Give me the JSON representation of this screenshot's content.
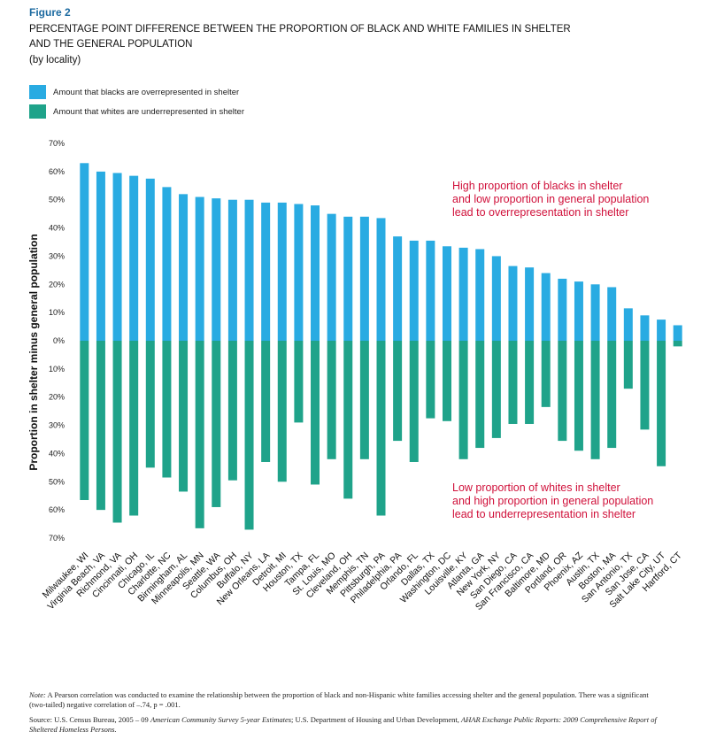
{
  "chart_data": {
    "type": "bar",
    "figure_label": "Figure 2",
    "title": [
      "PERCENTAGE POINT DIFFERENCE BETWEEN THE PROPORTION OF BLACK AND WHITE FAMILIES IN SHELTER",
      "AND THE GENERAL POPULATION"
    ],
    "subtitle": "(by locality)",
    "y_label": "Proportion in shelter minus general population",
    "categories": [
      "Milwaukee, WI",
      "Virginia Beach, VA",
      "Richmond, VA",
      "Cincinnati, OH",
      "Chicago, IL",
      "Charlotte, NC",
      "Birmingham, AL",
      "Minneapolis, MN",
      "Seattle, WA",
      "Columbus, OH",
      "Buffalo, NY",
      "New Orleans, LA",
      "Detroit, MI",
      "Houston, TX",
      "Tampa, FL",
      "St. Louis, MO",
      "Cleveland, OH",
      "Memphis, TN",
      "Pittsburgh, PA",
      "Philadelphia, PA",
      "Orlando, FL",
      "Dallas, TX",
      "Washington, DC",
      "Louisville, KY",
      "Atlanta, GA",
      "New York, NY",
      "San Diego, CA",
      "San Francisco, CA",
      "Baltimore, MD",
      "Portland, OR",
      "Phoenix, AZ",
      "Austin, TX",
      "Boston, MA",
      "San Antonio, TX",
      "San Jose, CA",
      "Salt Lake City, UT",
      "Hartford, CT"
    ],
    "series": [
      {
        "name": "Amount that blacks are overrepresented in shelter",
        "color": "#29abe2",
        "values": [
          63,
          60,
          59.5,
          58.5,
          57.5,
          54.5,
          52,
          51,
          50.5,
          50,
          50,
          49,
          49,
          48.5,
          48,
          45,
          44,
          44,
          43.5,
          37,
          35.5,
          35.5,
          33.5,
          33,
          32.5,
          30,
          26.5,
          26,
          24,
          22,
          21,
          20,
          19,
          11.5,
          9,
          7.5,
          5.5
        ]
      },
      {
        "name": "Amount that whites are underrepresented in shelter",
        "color": "#1fa38a",
        "values": [
          -56.5,
          -60,
          -64.5,
          -62,
          -45,
          -48.5,
          -53.5,
          -66.5,
          -59,
          -49.5,
          -67,
          -43,
          -50,
          -29,
          -51,
          -42,
          -56,
          -42,
          -62,
          -35.5,
          -43,
          -27.5,
          -28.5,
          -42,
          -38,
          -34.5,
          -29.5,
          -29.5,
          -23.5,
          -35.5,
          -39,
          -42,
          -38,
          -17,
          -31.5,
          -44.5,
          -2
        ]
      }
    ],
    "ylim": [
      -70,
      70
    ],
    "yticks": [
      {
        "value": 70,
        "label": "70%"
      },
      {
        "value": 60,
        "label": "60%"
      },
      {
        "value": 50,
        "label": "50%"
      },
      {
        "value": 40,
        "label": "40%"
      },
      {
        "value": 30,
        "label": "30%"
      },
      {
        "value": 20,
        "label": "20%"
      },
      {
        "value": 10,
        "label": "10%"
      },
      {
        "value": 0,
        "label": "0%"
      },
      {
        "value": -10,
        "label": "10%"
      },
      {
        "value": -20,
        "label": "20%"
      },
      {
        "value": -30,
        "label": "30%"
      },
      {
        "value": -40,
        "label": "40%"
      },
      {
        "value": -50,
        "label": "50%"
      },
      {
        "value": -60,
        "label": "60%"
      },
      {
        "value": -70,
        "label": "70%"
      }
    ],
    "annotations": [
      {
        "color": "#d0103a",
        "lines": [
          "High proportion of blacks in shelter",
          "and low proportion in general population",
          "lead to overrepresentation in shelter"
        ]
      },
      {
        "color": "#d0103a",
        "lines": [
          "Low proportion of whites in shelter",
          "and high proportion in general population",
          "lead to underrepresentation in shelter"
        ]
      }
    ],
    "notes": [
      [
        {
          "text": "Note:",
          "italic": true
        },
        {
          "text": " A Pearson correlation was conducted to examine the relationship between the proportion of black and non-Hispanic white families accessing shelter and the general population. There was a significant (two-tailed) negative correlation of –.74, p = .001.",
          "italic": false
        }
      ],
      [
        {
          "text": "Source: U.S. Census Bureau, 2005 – 09 ",
          "italic": false
        },
        {
          "text": "American Community Survey 5-year Estimates",
          "italic": true
        },
        {
          "text": "; U.S. Department of Housing and Urban Development, ",
          "italic": false
        },
        {
          "text": "AHAR Exchange Public Reports: 2009 Comprehensive Report of Sheltered Homeless Persons.",
          "italic": true
        }
      ]
    ]
  }
}
